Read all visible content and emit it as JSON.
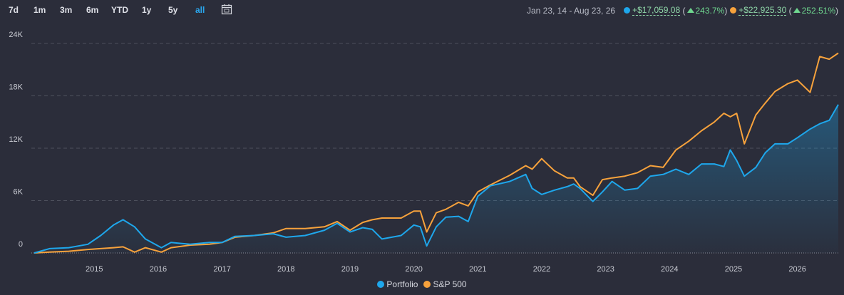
{
  "toolbar": {
    "ranges": [
      "7d",
      "1m",
      "3m",
      "6m",
      "YTD",
      "1y",
      "5y",
      "all"
    ],
    "active": "all"
  },
  "summary": {
    "date_range": "Jan 23, 14 - Aug 23, 26",
    "items": [
      {
        "amount": "+$17,059.08",
        "percent": "243.7%"
      },
      {
        "amount": "+$22,925.30",
        "percent": "252.51%"
      }
    ]
  },
  "chart_data": {
    "type": "line",
    "x": [
      2014.06,
      2014.3,
      2014.6,
      2014.9,
      2015.1,
      2015.3,
      2015.45,
      2015.63,
      2015.8,
      2016.05,
      2016.2,
      2016.5,
      2016.8,
      2017.0,
      2017.2,
      2017.5,
      2017.8,
      2018.0,
      2018.3,
      2018.6,
      2018.8,
      2019.0,
      2019.2,
      2019.35,
      2019.5,
      2019.8,
      2020.0,
      2020.1,
      2020.2,
      2020.35,
      2020.5,
      2020.7,
      2020.85,
      2021.0,
      2021.2,
      2021.5,
      2021.75,
      2021.85,
      2022.0,
      2022.2,
      2022.4,
      2022.5,
      2022.6,
      2022.8,
      2022.95,
      2023.1,
      2023.3,
      2023.5,
      2023.7,
      2023.9,
      2024.1,
      2024.3,
      2024.5,
      2024.7,
      2024.85,
      2024.95,
      2025.05,
      2025.17,
      2025.35,
      2025.5,
      2025.65,
      2025.85,
      2026.0,
      2026.2,
      2026.35,
      2026.5,
      2026.64
    ],
    "series": [
      {
        "name": "Portfolio",
        "color": "#1ea7ec",
        "area": true,
        "values": [
          0,
          0.5,
          0.6,
          1.0,
          2.0,
          3.2,
          3.8,
          3.0,
          1.6,
          0.6,
          1.2,
          1.0,
          1.2,
          1.2,
          1.9,
          2.0,
          2.2,
          1.8,
          2.0,
          2.6,
          3.4,
          2.4,
          2.9,
          2.7,
          1.6,
          2.0,
          3.2,
          3.0,
          0.8,
          3.0,
          4.1,
          4.2,
          3.6,
          6.5,
          7.7,
          8.2,
          9.0,
          7.4,
          6.7,
          7.2,
          7.6,
          7.9,
          7.4,
          5.9,
          7.0,
          8.2,
          7.2,
          7.4,
          8.8,
          9.0,
          9.6,
          9.0,
          10.2,
          10.2,
          9.9,
          11.8,
          10.6,
          8.8,
          9.8,
          11.5,
          12.5,
          12.5,
          13.2,
          14.2,
          14.8,
          15.2,
          17.0
        ]
      },
      {
        "name": "S&P 500",
        "color": "#f7a23c",
        "values": [
          0,
          0.1,
          0.2,
          0.4,
          0.5,
          0.6,
          0.7,
          0.1,
          0.6,
          0.1,
          0.6,
          0.9,
          1.0,
          1.2,
          1.8,
          2.0,
          2.3,
          2.8,
          2.8,
          3.0,
          3.6,
          2.6,
          3.5,
          3.8,
          4.0,
          4.0,
          4.8,
          4.8,
          2.4,
          4.6,
          5.0,
          5.8,
          5.4,
          7.0,
          7.8,
          8.9,
          10.0,
          9.6,
          10.8,
          9.4,
          8.6,
          8.6,
          7.6,
          6.6,
          8.4,
          8.6,
          8.8,
          9.2,
          10.0,
          9.8,
          11.8,
          12.8,
          14.0,
          15.0,
          16.0,
          15.6,
          16.0,
          12.5,
          15.8,
          17.2,
          18.5,
          19.4,
          19.8,
          18.4,
          22.5,
          22.2,
          22.9
        ]
      }
    ],
    "xlim": [
      2014.06,
      2026.64
    ],
    "xticks": [
      2015,
      2016,
      2017,
      2018,
      2019,
      2020,
      2021,
      2022,
      2023,
      2024,
      2025,
      2026
    ],
    "ylim": [
      0,
      25
    ],
    "yticks": [
      0,
      {
        "value": 6,
        "label": "6K"
      },
      {
        "value": 12,
        "label": "12K"
      },
      {
        "value": 18,
        "label": "18K"
      },
      {
        "value": 24,
        "label": "24K"
      }
    ],
    "grid": true,
    "legend": "bottom"
  }
}
